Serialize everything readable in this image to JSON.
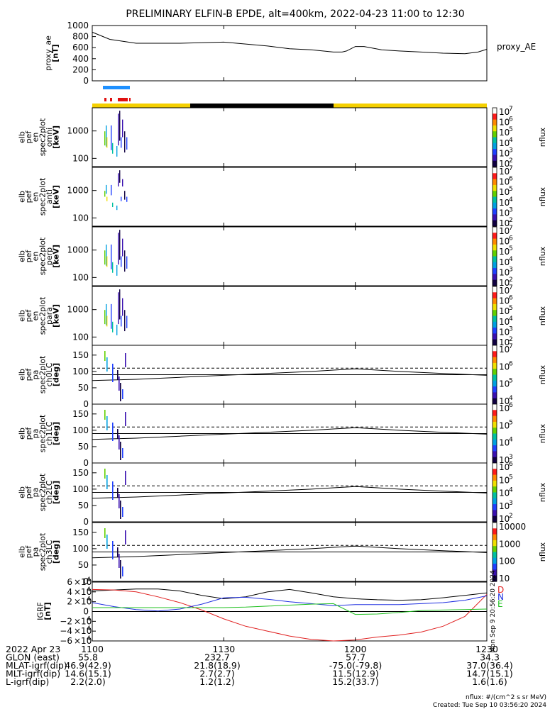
{
  "title": "PRELIMINARY ELFIN-B EPDE, alt=400km, 2022-04-23 11:00 to 12:30",
  "proxy_panel": {
    "ylabel_lines": [
      "proxy_ae",
      "[nT]"
    ],
    "legend": "proxy_AE",
    "yticks": [
      "1000",
      "800",
      "600",
      "400",
      "200",
      "0"
    ],
    "ylim": [
      0,
      1000
    ]
  },
  "spectra_panels": [
    {
      "label_lines": [
        "elb",
        "pef",
        "en",
        "spec2plot",
        "omni",
        "[keV]"
      ],
      "yticks": [
        "1000",
        "100"
      ]
    },
    {
      "label_lines": [
        "elb",
        "pef",
        "en",
        "spec2plot",
        "anti",
        "[keV]"
      ],
      "yticks": [
        "1000",
        "100"
      ]
    },
    {
      "label_lines": [
        "elb",
        "pef",
        "en",
        "spec2plot",
        "perp",
        "[keV]"
      ],
      "yticks": [
        "1000",
        "100"
      ]
    },
    {
      "label_lines": [
        "elb",
        "pef",
        "en",
        "spec2plot",
        "para",
        "[keV]"
      ],
      "yticks": [
        "1000",
        "100"
      ]
    }
  ],
  "pa_panels": [
    {
      "label_lines": [
        "elb",
        "pef",
        "pa",
        "spec2plot",
        "ch0LC",
        "[deg]"
      ],
      "yticks": [
        "150",
        "100",
        "50",
        "0"
      ]
    },
    {
      "label_lines": [
        "elb",
        "pef",
        "pa",
        "spec2plot",
        "ch1LC",
        "[deg]"
      ],
      "yticks": [
        "150",
        "100",
        "50",
        "0"
      ]
    },
    {
      "label_lines": [
        "elb",
        "pef",
        "pa",
        "spec2plot",
        "ch2LC",
        "[deg]"
      ],
      "yticks": [
        "150",
        "100",
        "50",
        "0"
      ]
    },
    {
      "label_lines": [
        "elb",
        "pef",
        "pa",
        "spec2plot",
        "ch3LC",
        "[deg]"
      ],
      "yticks": [
        "150",
        "100",
        "50",
        "0"
      ]
    }
  ],
  "colorbar_label": "nflux",
  "colorbars": [
    {
      "ticks": [
        "7",
        "6",
        "5",
        "4",
        "3",
        "2"
      ],
      "base": "10"
    },
    {
      "ticks": [
        "7",
        "6",
        "5",
        "4",
        "3",
        "2"
      ],
      "base": "10"
    },
    {
      "ticks": [
        "7",
        "6",
        "5",
        "4",
        "3",
        "2"
      ],
      "base": "10"
    },
    {
      "ticks": [
        "7",
        "6",
        "5",
        "4",
        "3",
        "2"
      ],
      "base": "10"
    },
    {
      "ticks": [
        "7",
        "6",
        "5",
        "4"
      ],
      "base": "10"
    },
    {
      "ticks": [
        "6",
        "5",
        "4",
        "3"
      ],
      "base": "10"
    },
    {
      "ticks": [
        "6",
        "5",
        "4",
        "3",
        "2"
      ],
      "base": "10"
    },
    {
      "ticks": [
        "10000",
        "1000",
        "100",
        "10"
      ],
      "base": ""
    }
  ],
  "igrf_panel": {
    "ylabel_lines": [
      "IGRF",
      "[nT]"
    ],
    "ytick_mantissas": [
      "6",
      "4",
      "2",
      "0",
      "−2",
      "−4",
      "−6"
    ],
    "components": [
      {
        "name": "D",
        "color": "#e02020"
      },
      {
        "name": "N",
        "color": "#2030e0"
      },
      {
        "name": "E",
        "color": "#20c020"
      }
    ],
    "side_text": "Mon Sep 9 20:56:20 2024"
  },
  "time_axis": {
    "ticks": [
      "1100",
      "1130",
      "1200",
      "1230"
    ]
  },
  "orbit_table": {
    "rows": [
      {
        "label": "2022 Apr 23",
        "values": []
      },
      {
        "label": "GLON (east)",
        "values": [
          "55.8",
          "232.7",
          "57.7",
          "34.3"
        ]
      },
      {
        "label": "MLAT-igrf(dip)",
        "values": [
          "46.9(42.9)",
          "21.8(18.9)",
          "-75.0(-79.8)",
          "37.0(36.4)"
        ]
      },
      {
        "label": "MLT-igrf(dip)",
        "values": [
          "14.6(15.1)",
          "2.7(2.7)",
          "11.5(12.9)",
          "14.7(15.1)"
        ]
      },
      {
        "label": "L-igrf(dip)",
        "values": [
          "2.2(2.0)",
          "1.2(1.2)",
          "15.2(33.7)",
          "1.6(1.6)"
        ]
      }
    ]
  },
  "footer": {
    "units": "nflux: #/(cm^2 s sr MeV)",
    "created": "Created: Tue Sep 10 03:56:20 2024"
  },
  "chart_data": {
    "type": "line",
    "x_unit": "UT hhmm",
    "xlim": [
      "1100",
      "1230"
    ],
    "proxy_ae": {
      "x": [
        1100,
        1104,
        1110,
        1120,
        1130,
        1140,
        1145,
        1150,
        1155,
        1157,
        1158,
        1200,
        1202,
        1206,
        1210,
        1215,
        1220,
        1225,
        1228,
        1230
      ],
      "y": [
        880,
        750,
        680,
        680,
        700,
        630,
        580,
        560,
        520,
        520,
        540,
        620,
        620,
        560,
        540,
        520,
        500,
        490,
        520,
        570
      ]
    },
    "pa_loss_cone_deg": {
      "x": [
        1100,
        1110,
        1120,
        1130,
        1140,
        1150,
        1155,
        1200,
        1205,
        1210,
        1220,
        1230
      ],
      "y": [
        72,
        76,
        82,
        88,
        94,
        100,
        104,
        108,
        104,
        100,
        94,
        88
      ]
    },
    "pa_reference_deg": [
      90,
      110
    ],
    "igrf_nT": {
      "x": [
        1100,
        1105,
        1110,
        1115,
        1120,
        1125,
        1130,
        1135,
        1140,
        1145,
        1150,
        1155,
        1200,
        1205,
        1210,
        1215,
        1220,
        1225,
        1230
      ],
      "D": [
        45000,
        44000,
        40000,
        30000,
        18000,
        3000,
        -15000,
        -30000,
        -40000,
        -50000,
        -57000,
        -60000,
        -58000,
        -52000,
        -48000,
        -42000,
        -30000,
        -10000,
        35000
      ],
      "N": [
        18000,
        10000,
        4000,
        1000,
        5000,
        15000,
        28000,
        29000,
        25000,
        20000,
        16000,
        12000,
        14000,
        14000,
        14000,
        16000,
        18000,
        23000,
        32000
      ],
      "E": [
        8000,
        8000,
        8000,
        8000,
        8000,
        8000,
        8000,
        9000,
        11000,
        13000,
        15000,
        16000,
        -6000,
        -5000,
        -2000,
        2000,
        3000,
        4000,
        5000
      ],
      "total": [
        42000,
        44000,
        46000,
        46000,
        42000,
        33000,
        26000,
        30000,
        40000,
        45000,
        38000,
        30000,
        26000,
        24000,
        23000,
        24000,
        28000,
        33000,
        38000
      ]
    },
    "ylim_proxy_ae": [
      0,
      1000
    ],
    "ylim_pa": [
      0,
      180
    ],
    "ylim_energy_keV": [
      50,
      7000
    ],
    "ylim_igrf": [
      -60000,
      60000
    ]
  }
}
